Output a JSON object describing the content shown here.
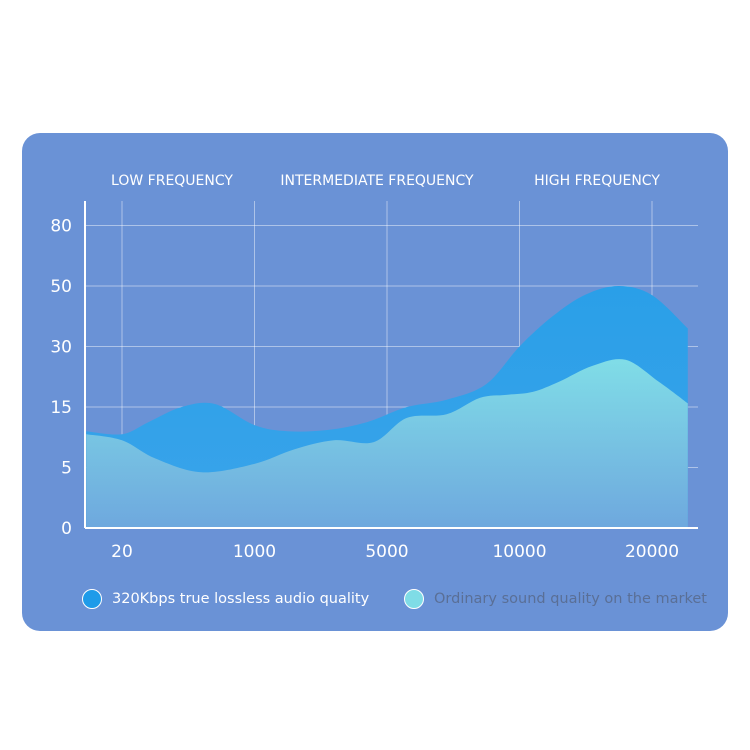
{
  "chart_data": {
    "type": "area",
    "band_labels": [
      "LOW FREQUENCY",
      "INTERMEDIATE FREQUENCY",
      "HIGH FREQUENCY"
    ],
    "x_ticks": [
      "20",
      "1000",
      "5000",
      "10000",
      "20000"
    ],
    "y_ticks": [
      "0",
      "5",
      "15",
      "30",
      "50",
      "80"
    ],
    "series": [
      {
        "name": "320Kbps true lossless audio quality",
        "color": "#2a9fe8",
        "values": [
          [
            -0.27,
            1.6
          ],
          [
            0,
            1.55
          ],
          [
            0.2,
            1.75
          ],
          [
            0.45,
            2.0
          ],
          [
            0.7,
            2.05
          ],
          [
            1.0,
            1.7
          ],
          [
            1.25,
            1.6
          ],
          [
            1.55,
            1.62
          ],
          [
            1.85,
            1.75
          ],
          [
            2.15,
            2.0
          ],
          [
            2.45,
            2.12
          ],
          [
            2.75,
            2.38
          ],
          [
            3.0,
            3.0
          ],
          [
            3.25,
            3.5
          ],
          [
            3.5,
            3.86
          ],
          [
            3.75,
            4.0
          ],
          [
            4.0,
            3.85
          ],
          [
            4.27,
            3.3
          ]
        ]
      },
      {
        "name": "Ordinary sound quality on the market",
        "color": "#7fdce6",
        "values": [
          [
            -0.27,
            1.55
          ],
          [
            0,
            1.45
          ],
          [
            0.25,
            1.15
          ],
          [
            0.6,
            0.92
          ],
          [
            1.0,
            1.06
          ],
          [
            1.3,
            1.3
          ],
          [
            1.6,
            1.45
          ],
          [
            1.9,
            1.42
          ],
          [
            2.15,
            1.82
          ],
          [
            2.45,
            1.88
          ],
          [
            2.7,
            2.15
          ],
          [
            2.9,
            2.2
          ],
          [
            3.1,
            2.25
          ],
          [
            3.3,
            2.42
          ],
          [
            3.55,
            2.68
          ],
          [
            3.8,
            2.78
          ],
          [
            4.05,
            2.42
          ],
          [
            4.27,
            2.06
          ]
        ]
      }
    ],
    "legend_position": "bottom",
    "grid": true
  }
}
